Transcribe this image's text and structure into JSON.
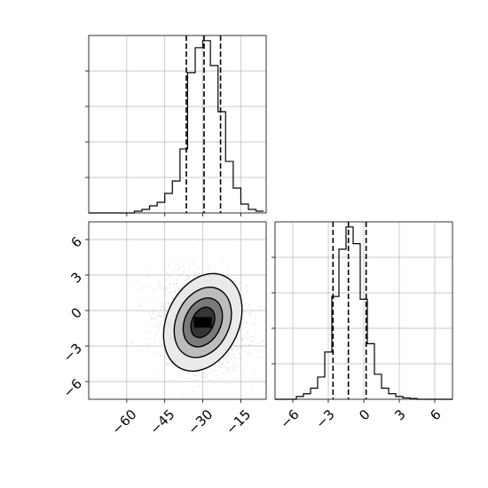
{
  "chart_data": [
    {
      "type": "histogram",
      "panel": "top-left",
      "variable_index": 0,
      "xlim": [
        -75,
        -5
      ],
      "bins_x": [
        -75,
        -72,
        -69,
        -66,
        -63,
        -60,
        -57,
        -54,
        -51,
        -48,
        -45,
        -42,
        -39,
        -36,
        -33,
        -30,
        -27,
        -24,
        -21,
        -18,
        -15,
        -12,
        -9,
        -6
      ],
      "counts": [
        0,
        0,
        0,
        0,
        0,
        0,
        1,
        2,
        4,
        6,
        11,
        18,
        36,
        79,
        93,
        97,
        83,
        57,
        29,
        14,
        5,
        2,
        1
      ],
      "quantile_lines": [
        -36.5,
        -29.5,
        -23
      ],
      "grid": true,
      "y_tick_labels_shown": false,
      "line_color": "#000000"
    },
    {
      "type": "histogram",
      "panel": "bottom-right",
      "variable_index": 1,
      "xlim": [
        -7.5,
        7.5
      ],
      "bins_x": [
        -7.5,
        -6.9,
        -6.3,
        -5.7,
        -5.1,
        -4.5,
        -3.9,
        -3.3,
        -2.7,
        -2.1,
        -1.5,
        -0.9,
        -0.3,
        0.3,
        0.9,
        1.5,
        2.1,
        2.7,
        3.3,
        3.9,
        4.5,
        5.1,
        5.7,
        6.3,
        6.9,
        7.5
      ],
      "counts": [
        0,
        0,
        0,
        1,
        2,
        4,
        8,
        17,
        37,
        54,
        62,
        56,
        36,
        20,
        9,
        4,
        2,
        1,
        0.5,
        0.3,
        0,
        0,
        0,
        0,
        0
      ],
      "quantile_lines": [
        -2.6,
        -1.3,
        0.2
      ],
      "grid": true,
      "y_tick_labels_shown": false,
      "x_ticks": [
        -6,
        -3,
        0,
        3,
        6
      ],
      "x_tick_labels": [
        "−6",
        "−3",
        "0",
        "3",
        "6"
      ],
      "line_color": "#000000"
    },
    {
      "type": "scatter_2d_histogram",
      "panel": "bottom-left",
      "x_variable": 0,
      "y_variable": 1,
      "xlim": [
        -75,
        -5
      ],
      "ylim": [
        -7.5,
        7.5
      ],
      "x_ticks": [
        -60,
        -45,
        -30,
        -15
      ],
      "x_tick_labels": [
        "−60",
        "−45",
        "−30",
        "−15"
      ],
      "y_ticks": [
        6,
        3,
        0,
        -3,
        -6
      ],
      "y_tick_labels": [
        "6",
        "3",
        "0",
        "−3",
        "−6"
      ],
      "center": [
        -30,
        -1
      ],
      "contour_levels": [
        {
          "rx": 15,
          "ry": 3.2,
          "rotation_deg": 25
        },
        {
          "rx": 11,
          "ry": 2.3,
          "rotation_deg": 25
        },
        {
          "rx": 7.5,
          "ry": 1.6,
          "rotation_deg": 25
        },
        {
          "rx": 4.5,
          "ry": 1.0,
          "rotation_deg": 25
        }
      ],
      "grid": true,
      "point_color": "#b0b0b0",
      "fill_color": "#000000"
    }
  ]
}
